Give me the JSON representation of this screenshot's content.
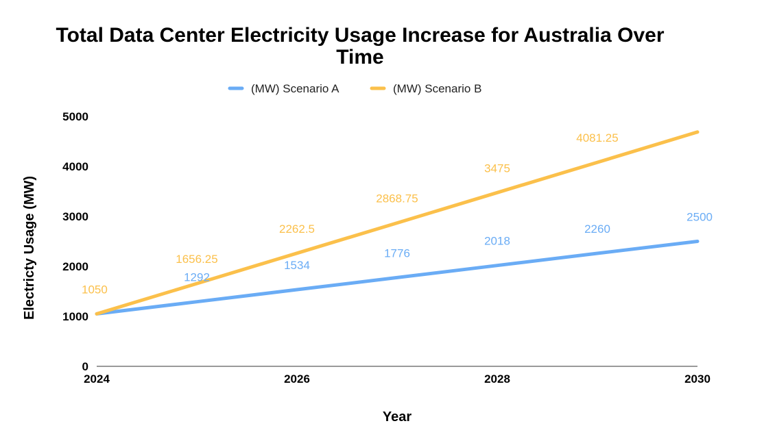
{
  "chart_data": {
    "type": "line",
    "title_lines": [
      "Total Data Center Electricity Usage Increase for Australia Over",
      "Time"
    ],
    "xlabel": "Year",
    "ylabel": "Electricty Usage (MW)",
    "x_ticks": [
      "2024",
      "2026",
      "2028",
      "2030"
    ],
    "y_ticks": [
      "0",
      "1000",
      "2000",
      "3000",
      "4000",
      "5000"
    ],
    "xlim": [
      2024,
      2030
    ],
    "ylim": [
      0,
      5000
    ],
    "legend_position": "top",
    "grid": false,
    "series": [
      {
        "name": "(MW) Scenario A",
        "color": "#6aacf5",
        "x": [
          2024,
          2025,
          2026,
          2027,
          2028,
          2029,
          2030
        ],
        "values": [
          1050,
          1292,
          1534,
          1776,
          2018,
          2260,
          2500
        ],
        "labels": [
          "1292",
          "1534",
          "1776",
          "2018",
          "2260",
          "2500"
        ]
      },
      {
        "name": "(MW) Scenario B",
        "color": "#fbc04b",
        "x": [
          2024,
          2025,
          2026,
          2027,
          2028,
          2029,
          2030
        ],
        "values": [
          1050,
          1656.25,
          2262.5,
          2868.75,
          3475,
          4081.25,
          4687.5
        ],
        "labels": [
          "1050",
          "1656.25",
          "2262.5",
          "2868.75",
          "3475",
          "4081.25"
        ]
      }
    ]
  }
}
